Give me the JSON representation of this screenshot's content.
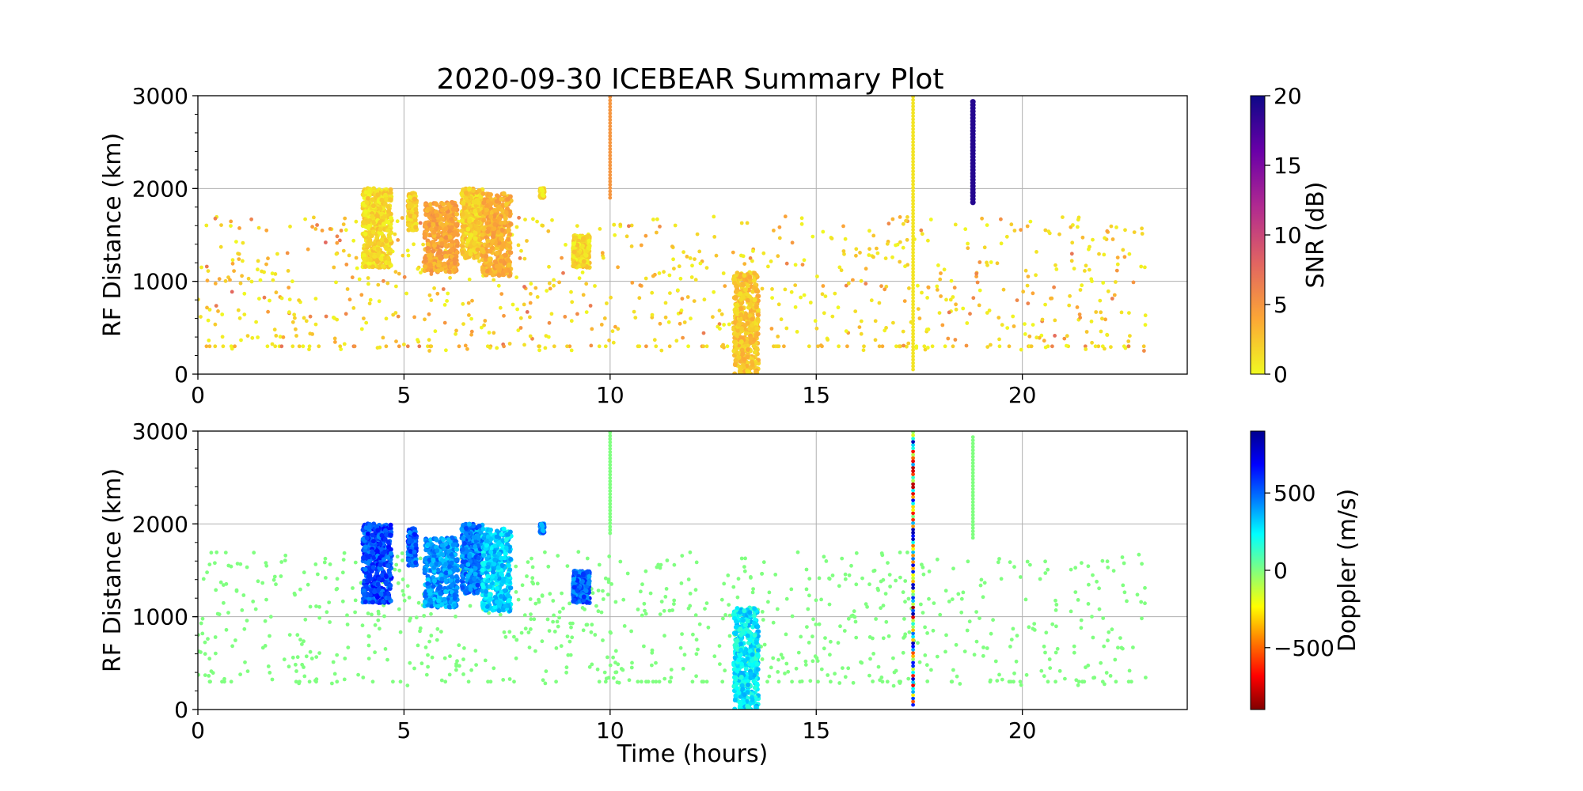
{
  "figure": {
    "title": "2020-09-30 ICEBEAR Summary Plot",
    "xlabel": "Time (hours)"
  },
  "chart_data": [
    {
      "type": "scatter",
      "panel": "top",
      "ylabel": "RF Distance (km)",
      "xlim": [
        0,
        24
      ],
      "ylim": [
        0,
        3000
      ],
      "xticks": [
        0,
        5,
        10,
        15,
        20
      ],
      "yticks": [
        0,
        1000,
        2000,
        3000
      ],
      "grid": true,
      "colorbar": {
        "label": "SNR (dB)",
        "range": [
          0,
          20
        ],
        "ticks": [
          0,
          5,
          10,
          15,
          20
        ],
        "colormap": "plasma_r",
        "colors": [
          "#f0f921",
          "#fca636",
          "#e16462",
          "#b12a90",
          "#6a00a8",
          "#0d0887"
        ]
      },
      "clusters": [
        {
          "x_range": [
            4.0,
            4.7
          ],
          "y_range": [
            1150,
            2000
          ],
          "snr": 1.5
        },
        {
          "x_range": [
            5.1,
            5.3
          ],
          "y_range": [
            1550,
            1950
          ],
          "snr": 2
        },
        {
          "x_range": [
            5.5,
            6.3
          ],
          "y_range": [
            1100,
            1850
          ],
          "snr": 4
        },
        {
          "x_range": [
            6.4,
            6.9
          ],
          "y_range": [
            1250,
            2000
          ],
          "snr": 2
        },
        {
          "x_range": [
            6.9,
            7.6
          ],
          "y_range": [
            1050,
            1950
          ],
          "snr": 3.5
        },
        {
          "x_range": [
            8.3,
            8.4
          ],
          "y_range": [
            1900,
            2000
          ],
          "snr": 1.5
        },
        {
          "x_range": [
            9.1,
            9.5
          ],
          "y_range": [
            1150,
            1500
          ],
          "snr": 1.5
        },
        {
          "x_range": [
            13.0,
            13.6
          ],
          "y_range": [
            0,
            1100
          ],
          "snr": 2.5
        }
      ],
      "lines": [
        {
          "x": 10.0,
          "y_range": [
            1900,
            3000
          ],
          "snr": 5
        },
        {
          "x": 17.35,
          "y_range": [
            50,
            3000
          ],
          "snr": 1
        },
        {
          "x": 18.8,
          "y_range": [
            1850,
            2950
          ],
          "snr": 19
        }
      ],
      "scatter_region": {
        "x_range": [
          0,
          23
        ],
        "y_range": [
          250,
          1700
        ]
      }
    },
    {
      "type": "scatter",
      "panel": "bottom",
      "ylabel": "RF Distance (km)",
      "xlabel": "Time (hours)",
      "xlim": [
        0,
        24
      ],
      "ylim": [
        0,
        3000
      ],
      "xticks": [
        0,
        5,
        10,
        15,
        20
      ],
      "yticks": [
        0,
        1000,
        2000,
        3000
      ],
      "grid": true,
      "colorbar": {
        "label": "Doppler (m/s)",
        "range": [
          -900,
          900
        ],
        "ticks": [
          -500,
          0,
          500
        ],
        "tick_labels": [
          "−500",
          "0",
          "500"
        ],
        "colormap": "jet_r",
        "colors": [
          "#800000",
          "#ff0000",
          "#ff8000",
          "#ffff00",
          "#80ff80",
          "#00ffff",
          "#0080ff",
          "#0000ff",
          "#00008f"
        ]
      },
      "clusters": [
        {
          "x_range": [
            4.0,
            4.7
          ],
          "y_range": [
            1150,
            2000
          ],
          "doppler": 550
        },
        {
          "x_range": [
            5.1,
            5.3
          ],
          "y_range": [
            1550,
            1950
          ],
          "doppler": 520
        },
        {
          "x_range": [
            5.5,
            6.3
          ],
          "y_range": [
            1100,
            1850
          ],
          "doppler": 400
        },
        {
          "x_range": [
            6.4,
            6.9
          ],
          "y_range": [
            1250,
            2000
          ],
          "doppler": 450
        },
        {
          "x_range": [
            6.9,
            7.6
          ],
          "y_range": [
            1050,
            1950
          ],
          "doppler": 300
        },
        {
          "x_range": [
            8.3,
            8.4
          ],
          "y_range": [
            1900,
            2000
          ],
          "doppler": 450
        },
        {
          "x_range": [
            9.1,
            9.5
          ],
          "y_range": [
            1150,
            1500
          ],
          "doppler": 500
        },
        {
          "x_range": [
            13.0,
            13.6
          ],
          "y_range": [
            0,
            1100
          ],
          "doppler": 250
        }
      ],
      "lines": [
        {
          "x": 10.0,
          "y_range": [
            1900,
            3000
          ],
          "doppler": 0
        },
        {
          "x": 17.35,
          "y_range": [
            50,
            3000
          ],
          "doppler": "mixed"
        },
        {
          "x": 18.8,
          "y_range": [
            1850,
            2950
          ],
          "doppler": 0
        }
      ],
      "scatter_region": {
        "x_range": [
          0,
          23
        ],
        "y_range": [
          250,
          1700
        ],
        "doppler": 0
      }
    }
  ]
}
